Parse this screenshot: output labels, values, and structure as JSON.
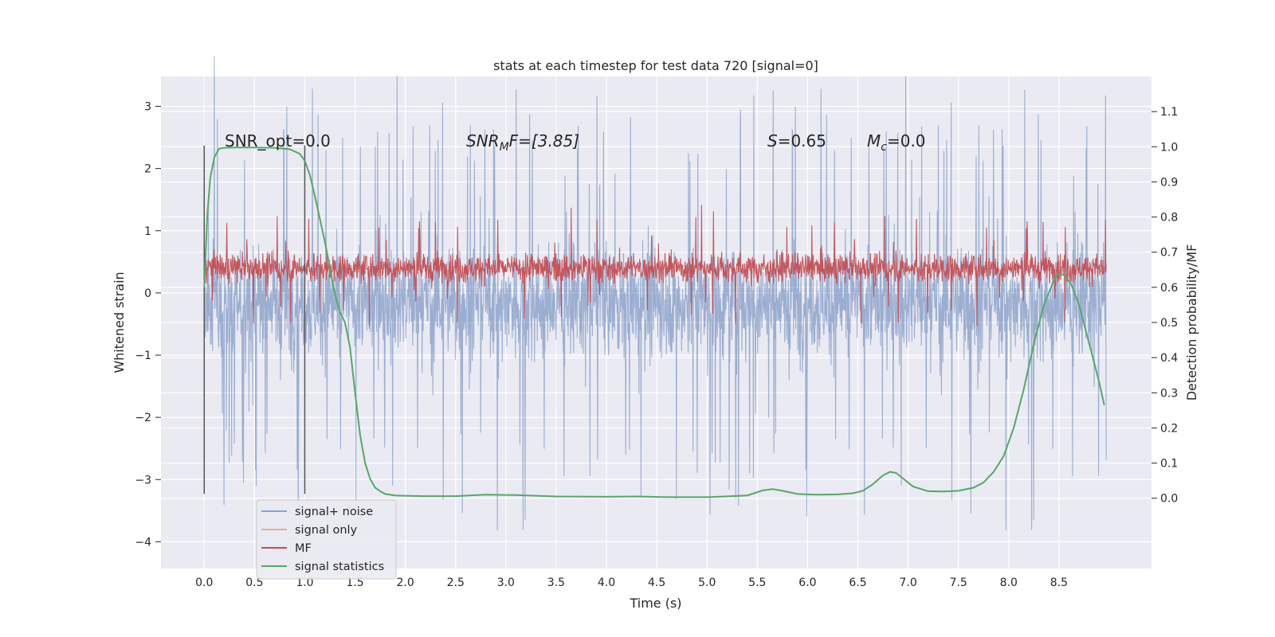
{
  "chart_data": {
    "type": "line",
    "title": "stats at each timestep for test data 720 [signal=0]",
    "xlabel": "Time (s)",
    "ylabel": "Whitened strain",
    "y2label": "Detection probability/MF",
    "xlim": [
      -0.43,
      9.42
    ],
    "ylim": [
      -4.43,
      3.48
    ],
    "y2lim": [
      -0.2,
      1.2
    ],
    "xticks": [
      "0.0",
      "0.5",
      "1.0",
      "1.5",
      "2.0",
      "2.5",
      "3.0",
      "3.5",
      "4.0",
      "4.5",
      "5.0",
      "5.5",
      "6.0",
      "6.5",
      "7.0",
      "7.5",
      "8.0",
      "8.5"
    ],
    "yticks": [
      "3",
      "2",
      "1",
      "0",
      "−1",
      "−2",
      "−3",
      "−4"
    ],
    "y2ticks": [
      "1.1",
      "1.0",
      "0.9",
      "0.8",
      "0.7",
      "0.6",
      "0.5",
      "0.4",
      "0.3",
      "0.2",
      "0.1",
      "0.0"
    ],
    "annotations": [
      {
        "kind": "plain",
        "text": "SNR_opt=0.0"
      },
      {
        "kind": "sub",
        "base": "SNR",
        "sub": "M",
        "rest": "F=[3.85]"
      },
      {
        "kind": "italic",
        "base": "S",
        "rest": "=0.65"
      },
      {
        "kind": "sub",
        "base": "M",
        "sub": "c",
        "rest": "=0.0"
      }
    ],
    "vlines_x": [
      0.0,
      1.0
    ],
    "vline_range": [
      -3.23,
      2.37
    ],
    "series": [
      {
        "name": "signal+ noise",
        "color": "#4c72b0",
        "axis": "left",
        "style": "noise",
        "t_range": [
          0.0,
          8.97
        ],
        "envelope": [
          -1.5,
          1.5
        ],
        "mean": -0.15
      },
      {
        "name": "signal only",
        "color": "#dd8452",
        "axis": "left",
        "style": "flat",
        "values": []
      },
      {
        "name": "MF",
        "color": "#c44e52",
        "axis": "left",
        "style": "noise",
        "t_range": [
          0.0,
          8.97
        ],
        "envelope": [
          0.05,
          0.85
        ],
        "mean": 0.4
      },
      {
        "name": "signal statistics",
        "color": "#55a868",
        "axis": "right",
        "style": "line",
        "x": [
          0.0,
          0.03,
          0.06,
          0.1,
          0.15,
          0.2,
          0.3,
          0.5,
          0.7,
          0.85,
          0.95,
          1.0,
          1.05,
          1.1,
          1.2,
          1.3,
          1.35,
          1.4,
          1.45,
          1.5,
          1.55,
          1.6,
          1.65,
          1.7,
          1.75,
          1.8,
          1.9,
          2.0,
          2.2,
          2.5,
          2.8,
          3.1,
          3.5,
          4.0,
          4.3,
          4.6,
          5.0,
          5.4,
          5.55,
          5.65,
          5.75,
          5.9,
          6.1,
          6.3,
          6.45,
          6.55,
          6.65,
          6.75,
          6.82,
          6.88,
          6.95,
          7.05,
          7.2,
          7.35,
          7.5,
          7.65,
          7.75,
          7.85,
          7.95,
          8.05,
          8.15,
          8.25,
          8.35,
          8.45,
          8.5,
          8.55,
          8.62,
          8.7,
          8.8,
          8.9,
          8.95
        ],
        "values": [
          0.6,
          0.8,
          0.91,
          0.97,
          0.995,
          0.997,
          0.998,
          0.998,
          0.997,
          0.993,
          0.98,
          0.96,
          0.92,
          0.86,
          0.73,
          0.58,
          0.53,
          0.5,
          0.43,
          0.3,
          0.18,
          0.1,
          0.055,
          0.03,
          0.02,
          0.012,
          0.008,
          0.007,
          0.006,
          0.006,
          0.01,
          0.009,
          0.005,
          0.004,
          0.005,
          0.003,
          0.003,
          0.008,
          0.022,
          0.026,
          0.021,
          0.012,
          0.01,
          0.011,
          0.014,
          0.021,
          0.04,
          0.065,
          0.075,
          0.072,
          0.056,
          0.033,
          0.02,
          0.019,
          0.021,
          0.03,
          0.045,
          0.075,
          0.12,
          0.2,
          0.31,
          0.44,
          0.55,
          0.62,
          0.64,
          0.635,
          0.61,
          0.55,
          0.44,
          0.33,
          0.265
        ]
      }
    ],
    "legend": {
      "placement": "lower-left",
      "entries": [
        "signal+ noise",
        "signal only",
        "MF",
        "signal statistics"
      ]
    }
  }
}
